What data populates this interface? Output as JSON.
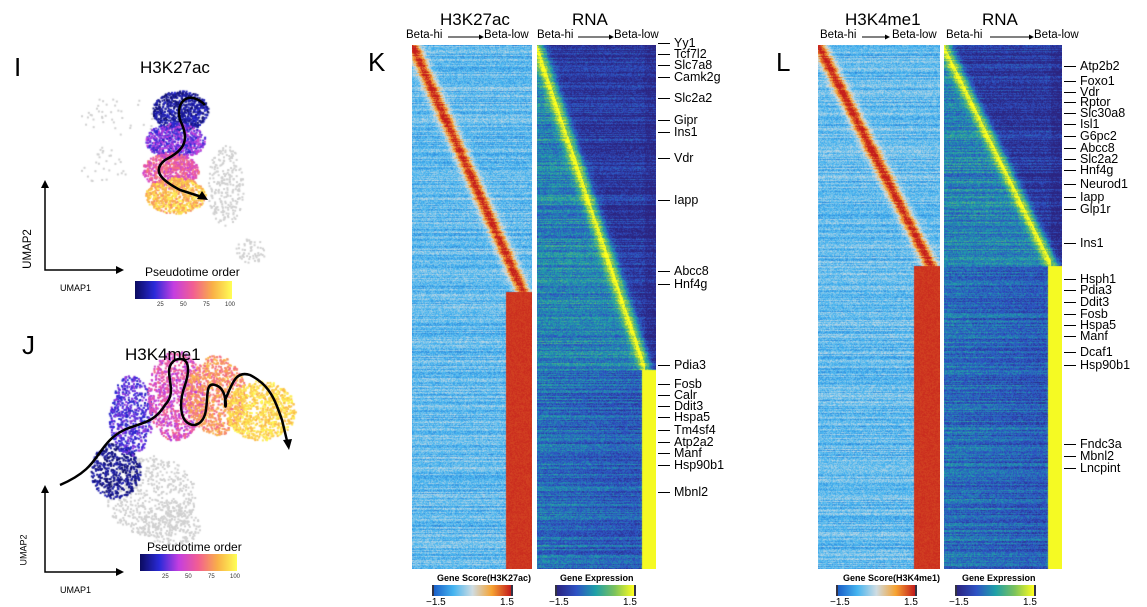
{
  "panels": {
    "I": {
      "letter": "I",
      "title": "H3K27ac",
      "xaxis": "UMAP1",
      "yaxis": "UMAP2",
      "colorbar_title": "Pseudotime order",
      "colorbar_ticks": [
        "25",
        "50",
        "75",
        "100"
      ]
    },
    "J": {
      "letter": "J",
      "title": "H3K4me1",
      "xaxis": "UMAP1",
      "yaxis": "UMAP2",
      "colorbar_title": "Pseudotime order",
      "colorbar_ticks": [
        "25",
        "50",
        "75",
        "100"
      ]
    },
    "K": {
      "letter": "K",
      "left_title": "H3K27ac",
      "right_title": "RNA",
      "from": "Beta-hi",
      "to": "Beta-low",
      "cb_left_title": "Gene Score(H3K27ac)",
      "cb_right_title": "Gene Expression",
      "cb_min": "−1.5",
      "cb_max": "1.5",
      "genes": [
        "Yy1",
        "Tcf7l2",
        "Slc7a8",
        "Camk2g",
        "Slc2a2",
        "Gipr",
        "Ins1",
        "Vdr",
        "Iapp",
        "Abcc8",
        "Hnf4g",
        "Pdia3",
        "Fosb",
        "Calr",
        "Ddit3",
        "Hspa5",
        "Tm4sf4",
        "Atp2a2",
        "Manf",
        "Hsp90b1",
        "Mbnl2"
      ]
    },
    "L": {
      "letter": "L",
      "left_title": "H3K4me1",
      "right_title": "RNA",
      "from": "Beta-hi",
      "to": "Beta-low",
      "cb_left_title": "Gene Score(H3K4me1)",
      "cb_right_title": "Gene Expression",
      "cb_min": "−1.5",
      "cb_max": "1.5",
      "genes": [
        "Atp2b2",
        "Foxo1",
        "Vdr",
        "Rptor",
        "Slc30a8",
        "Isl1",
        "G6pc2",
        "Abcc8",
        "Slc2a2",
        "Hnf4g",
        "Neurod1",
        "Iapp",
        "Glp1r",
        "Ins1",
        "Hsph1",
        "Pdia3",
        "Ddit3",
        "Fosb",
        "Hspa5",
        "Manf",
        "Dcaf1",
        "Hsp90b1",
        "Fndc3a",
        "Mbnl2",
        "Lncpint"
      ]
    }
  },
  "chart_data": [
    {
      "type": "scatter",
      "title": "H3K27ac",
      "xlabel": "UMAP1",
      "ylabel": "UMAP2",
      "color_by": "Pseudotime order",
      "color_range": [
        0,
        100
      ],
      "colormap": [
        "#0b0b5e",
        "#2a2ad8",
        "#c43ee0",
        "#f25e92",
        "#f9b048",
        "#ffff55"
      ],
      "background_color": "#d0d0d0"
    },
    {
      "type": "scatter",
      "title": "H3K4me1",
      "xlabel": "UMAP1",
      "ylabel": "UMAP2",
      "color_by": "Pseudotime order",
      "color_range": [
        0,
        100
      ],
      "colormap": [
        "#0b0b5e",
        "#2a2ad8",
        "#c43ee0",
        "#f25e92",
        "#f9b048",
        "#ffff55"
      ],
      "background_color": "#d0d0d0"
    },
    {
      "type": "heatmap",
      "title": "H3K27ac",
      "x_direction": [
        "Beta-hi",
        "Beta-low"
      ],
      "color_label": "Gene Score(H3K27ac)",
      "color_range": [
        -1.5,
        1.5
      ],
      "colormap": [
        "#1a5fc8",
        "#45b4f0",
        "#cfdce2",
        "#f6a332",
        "#c41c1c"
      ]
    },
    {
      "type": "heatmap",
      "title": "RNA",
      "x_direction": [
        "Beta-hi",
        "Beta-low"
      ],
      "color_label": "Gene Expression",
      "color_range": [
        -1.5,
        1.5
      ],
      "colormap": [
        "#2b2480",
        "#2e52c4",
        "#1fa0a8",
        "#7cc25c",
        "#ffff1e"
      ]
    },
    {
      "type": "heatmap",
      "title": "H3K4me1",
      "x_direction": [
        "Beta-hi",
        "Beta-low"
      ],
      "color_label": "Gene Score(H3K4me1)",
      "color_range": [
        -1.5,
        1.5
      ],
      "colormap": [
        "#1a5fc8",
        "#45b4f0",
        "#cfdce2",
        "#f6a332",
        "#c41c1c"
      ]
    },
    {
      "type": "heatmap",
      "title": "RNA",
      "x_direction": [
        "Beta-hi",
        "Beta-low"
      ],
      "color_label": "Gene Expression",
      "color_range": [
        -1.5,
        1.5
      ],
      "colormap": [
        "#2b2480",
        "#2e52c4",
        "#1fa0a8",
        "#7cc25c",
        "#ffff1e"
      ]
    }
  ]
}
